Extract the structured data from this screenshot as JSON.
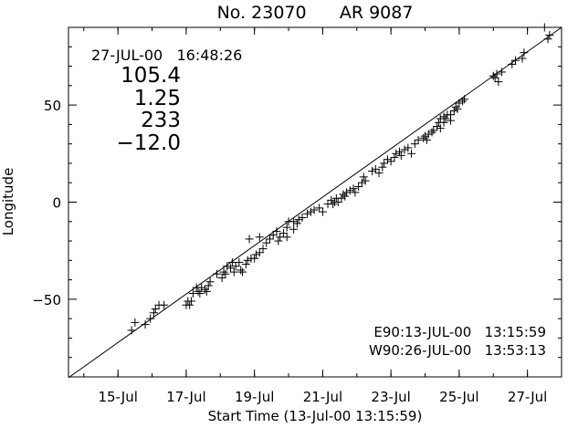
{
  "chart_data": {
    "type": "scatter",
    "title": "No. 23070      AR 9087",
    "xlabel": "Start Time (13-Jul-00 13:15:59)",
    "ylabel": "Longitude",
    "x_unit": "days since 13-Jul-00 13:15:59",
    "xlim": [
      0,
      14.45
    ],
    "ylim": [
      -90,
      90
    ],
    "x_tick_values": [
      1.45,
      3.45,
      5.45,
      7.45,
      9.45,
      11.45,
      13.45
    ],
    "x_tick_labels": [
      "15-Jul",
      "17-Jul",
      "19-Jul",
      "21-Jul",
      "23-Jul",
      "25-Jul",
      "27-Jul"
    ],
    "y_ticks": [
      -50,
      0,
      50
    ],
    "grid": false,
    "fit_line": {
      "x": [
        0,
        14.45
      ],
      "y": [
        -90.4,
        90.6
      ]
    },
    "annotations": {
      "top_left": [
        "27-JUL-00   16:48:26",
        "105.4",
        "1.25",
        "233",
        "−12.0"
      ],
      "bottom_right": [
        "E90:13-JUL-00   13:15:59",
        "W90:26-JUL-00   13:53:13"
      ]
    },
    "points": [
      [
        1.85,
        -66
      ],
      [
        1.95,
        -62
      ],
      [
        2.25,
        -63
      ],
      [
        2.4,
        -60
      ],
      [
        2.5,
        -57
      ],
      [
        2.55,
        -55
      ],
      [
        2.65,
        -53
      ],
      [
        2.8,
        -53
      ],
      [
        3.45,
        -53
      ],
      [
        3.5,
        -51
      ],
      [
        3.55,
        -53
      ],
      [
        3.6,
        -51
      ],
      [
        3.65,
        -47
      ],
      [
        3.75,
        -44
      ],
      [
        3.8,
        -46
      ],
      [
        3.85,
        -47
      ],
      [
        3.9,
        -44
      ],
      [
        4.0,
        -45
      ],
      [
        4.05,
        -46
      ],
      [
        4.1,
        -43
      ],
      [
        4.15,
        -41
      ],
      [
        4.35,
        -37
      ],
      [
        4.5,
        -39
      ],
      [
        4.55,
        -36
      ],
      [
        4.6,
        -37
      ],
      [
        4.65,
        -33
      ],
      [
        4.75,
        -34
      ],
      [
        4.8,
        -31
      ],
      [
        4.85,
        -36
      ],
      [
        4.9,
        -33
      ],
      [
        5.0,
        -31
      ],
      [
        5.05,
        -35
      ],
      [
        5.1,
        -36
      ],
      [
        5.2,
        -32
      ],
      [
        5.25,
        -30
      ],
      [
        5.35,
        -29
      ],
      [
        5.5,
        -27
      ],
      [
        5.6,
        -26
      ],
      [
        5.45,
        -29
      ],
      [
        5.7,
        -24
      ],
      [
        5.3,
        -19
      ],
      [
        5.6,
        -18
      ],
      [
        5.8,
        -21
      ],
      [
        5.9,
        -19
      ],
      [
        6.0,
        -17
      ],
      [
        6.1,
        -15
      ],
      [
        6.15,
        -20
      ],
      [
        6.2,
        -18
      ],
      [
        6.3,
        -16
      ],
      [
        6.4,
        -13
      ],
      [
        6.45,
        -10
      ],
      [
        6.6,
        -10
      ],
      [
        6.7,
        -11
      ],
      [
        6.75,
        -9
      ],
      [
        6.85,
        -8
      ],
      [
        6.4,
        -18
      ],
      [
        6.6,
        -14
      ],
      [
        7.0,
        -6
      ],
      [
        7.1,
        -5
      ],
      [
        7.2,
        -4
      ],
      [
        7.35,
        -3
      ],
      [
        7.45,
        -5
      ],
      [
        7.6,
        -1
      ],
      [
        7.7,
        1
      ],
      [
        7.75,
        -1
      ],
      [
        7.8,
        0
      ],
      [
        7.85,
        2
      ],
      [
        7.9,
        0
      ],
      [
        8.0,
        2
      ],
      [
        8.05,
        4
      ],
      [
        8.1,
        3
      ],
      [
        8.15,
        5
      ],
      [
        8.25,
        6
      ],
      [
        8.35,
        7
      ],
      [
        8.4,
        5
      ],
      [
        8.5,
        8
      ],
      [
        8.6,
        10
      ],
      [
        8.7,
        11
      ],
      [
        8.65,
        13
      ],
      [
        8.9,
        16
      ],
      [
        9.0,
        17
      ],
      [
        9.1,
        15
      ],
      [
        9.2,
        18
      ],
      [
        9.25,
        20
      ],
      [
        9.35,
        22
      ],
      [
        9.45,
        21
      ],
      [
        9.55,
        23
      ],
      [
        9.6,
        25
      ],
      [
        9.7,
        26
      ],
      [
        9.75,
        24
      ],
      [
        9.85,
        27
      ],
      [
        9.95,
        28
      ],
      [
        10.05,
        25
      ],
      [
        10.15,
        30
      ],
      [
        10.25,
        32
      ],
      [
        10.4,
        33
      ],
      [
        10.45,
        34
      ],
      [
        10.5,
        32
      ],
      [
        10.55,
        35
      ],
      [
        10.65,
        36
      ],
      [
        10.7,
        37
      ],
      [
        10.8,
        39
      ],
      [
        10.85,
        41
      ],
      [
        10.9,
        43
      ],
      [
        11.0,
        44
      ],
      [
        11.05,
        43
      ],
      [
        11.1,
        45
      ],
      [
        11.2,
        45
      ],
      [
        11.3,
        47
      ],
      [
        11.35,
        49
      ],
      [
        11.4,
        48
      ],
      [
        11.45,
        51
      ],
      [
        11.55,
        52
      ],
      [
        11.6,
        53
      ],
      [
        10.9,
        38
      ],
      [
        11.0,
        41
      ],
      [
        11.2,
        42
      ],
      [
        12.45,
        65
      ],
      [
        12.55,
        66
      ],
      [
        12.7,
        67
      ],
      [
        12.5,
        64
      ],
      [
        12.6,
        62
      ],
      [
        13.0,
        71
      ],
      [
        13.1,
        73
      ],
      [
        13.3,
        74
      ],
      [
        13.35,
        77
      ],
      [
        13.95,
        90
      ],
      [
        14.05,
        91
      ],
      [
        14.1,
        86
      ],
      [
        14.05,
        84
      ]
    ]
  }
}
